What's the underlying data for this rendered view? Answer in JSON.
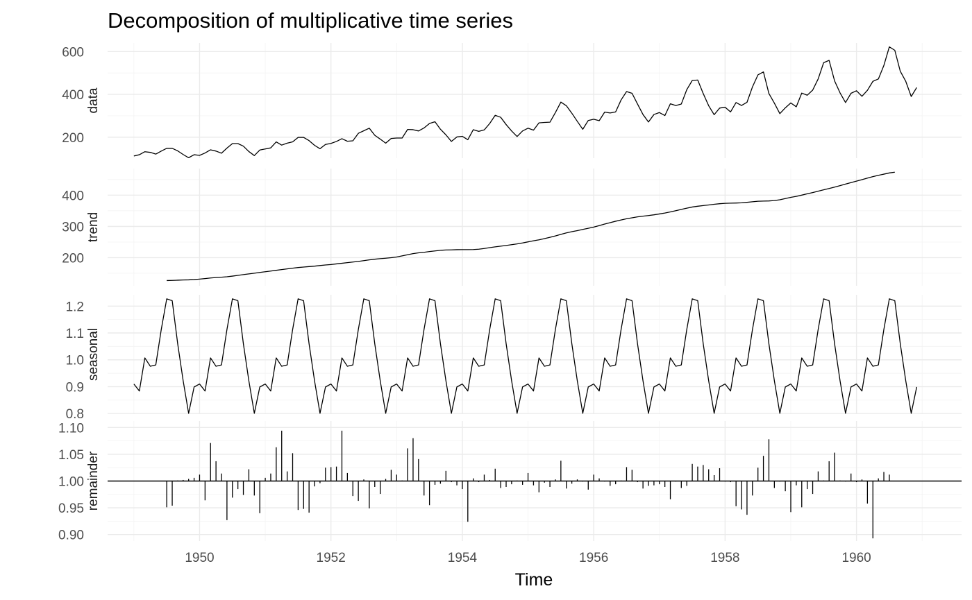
{
  "chart_data": {
    "type": "line",
    "title": "Decomposition of multiplicative time series",
    "xlabel": "Time",
    "frequency": 12,
    "start": [
      1949,
      1
    ],
    "x_range": [
      1948.6,
      1961.6
    ],
    "x_ticks": [
      1950,
      1952,
      1954,
      1956,
      1958,
      1960
    ],
    "grid": true,
    "panels": [
      {
        "name": "data",
        "ylim": [
          102,
          640
        ],
        "y_ticks": [
          200,
          400,
          600
        ],
        "y_tick_labels": [
          "200",
          "400",
          "600"
        ],
        "values": [
          112,
          118,
          132,
          129,
          121,
          135,
          148,
          148,
          136,
          119,
          104,
          118,
          115,
          126,
          141,
          135,
          125,
          149,
          170,
          170,
          158,
          133,
          114,
          140,
          145,
          150,
          178,
          163,
          172,
          178,
          199,
          199,
          184,
          162,
          146,
          166,
          171,
          180,
          193,
          181,
          183,
          218,
          230,
          242,
          209,
          191,
          172,
          194,
          196,
          196,
          236,
          235,
          229,
          243,
          264,
          272,
          237,
          211,
          180,
          201,
          204,
          188,
          235,
          227,
          234,
          264,
          302,
          293,
          259,
          229,
          203,
          229,
          242,
          233,
          267,
          269,
          270,
          315,
          364,
          347,
          312,
          274,
          237,
          278,
          284,
          277,
          317,
          313,
          318,
          374,
          413,
          405,
          355,
          306,
          271,
          306,
          315,
          301,
          356,
          348,
          355,
          422,
          465,
          467,
          404,
          347,
          305,
          336,
          340,
          318,
          362,
          348,
          363,
          435,
          491,
          505,
          404,
          359,
          310,
          337,
          360,
          342,
          406,
          396,
          420,
          472,
          548,
          559,
          463,
          407,
          362,
          405,
          417,
          391,
          419,
          461,
          472,
          535,
          622,
          606,
          508,
          461,
          390,
          432
        ]
      },
      {
        "name": "trend",
        "ylim": [
          110,
          485
        ],
        "y_ticks": [
          200,
          300,
          400
        ],
        "y_tick_labels": [
          "200",
          "300",
          "400"
        ],
        "values": [
          null,
          null,
          null,
          null,
          null,
          null,
          126.8,
          127.2,
          127.9,
          128.6,
          129.0,
          129.8,
          131.3,
          133.1,
          134.9,
          136.4,
          137.4,
          138.8,
          140.9,
          143.2,
          145.7,
          148.0,
          150.3,
          152.7,
          155.0,
          157.1,
          159.5,
          161.8,
          164.0,
          166.3,
          168.4,
          170.0,
          171.4,
          172.8,
          174.8,
          176.6,
          178.0,
          180.0,
          182.0,
          184.0,
          186.0,
          188.0,
          190.5,
          193.0,
          195.0,
          196.8,
          198.2,
          199.8,
          202.0,
          205.6,
          209.3,
          212.9,
          215.3,
          217.0,
          219.6,
          221.6,
          223.5,
          224.5,
          224.8,
          225.5,
          225.6,
          225.6,
          225.9,
          227.0,
          229.3,
          232.0,
          234.5,
          236.8,
          239.0,
          241.5,
          244.0,
          247.0,
          250.5,
          254.0,
          257.0,
          260.8,
          265.0,
          269.5,
          274.5,
          279.3,
          283.0,
          286.5,
          290.2,
          294.0,
          297.8,
          302.5,
          307.5,
          312.0,
          316.5,
          320.5,
          324.3,
          327.5,
          330.5,
          332.7,
          334.7,
          337.0,
          339.8,
          342.8,
          346.3,
          350.3,
          354.3,
          358.3,
          362.0,
          364.5,
          366.6,
          368.5,
          370.8,
          372.5,
          373.8,
          374.3,
          374.7,
          375.4,
          377.0,
          378.8,
          380.4,
          381.0,
          381.4,
          382.6,
          385.1,
          389.0,
          393.0,
          396.0,
          400.0,
          404.2,
          408.2,
          412.7,
          417.0,
          421.3,
          425.7,
          430.3,
          435.3,
          440.2,
          444.7,
          449.5,
          454.5,
          459.2,
          463.3,
          467.1,
          471.0,
          473.4,
          null,
          null,
          null,
          null,
          null,
          null
        ]
      },
      {
        "name": "seasonal",
        "ylim": [
          0.798,
          1.242
        ],
        "y_ticks": [
          0.8,
          0.9,
          1.0,
          1.1,
          1.2
        ],
        "y_tick_labels": [
          "0.8",
          "0.9",
          "1.0",
          "1.1",
          "1.2"
        ],
        "pattern": [
          0.91,
          0.884,
          1.007,
          0.976,
          0.981,
          1.113,
          1.227,
          1.22,
          1.06,
          0.922,
          0.801,
          0.899
        ]
      },
      {
        "name": "remainder",
        "ylim": [
          0.888,
          1.112
        ],
        "y_ticks": [
          0.9,
          0.95,
          1.0,
          1.05,
          1.1
        ],
        "y_tick_labels": [
          "0.90",
          "0.95",
          "1.00",
          "1.05",
          "1.10"
        ],
        "baseline": 1.0,
        "values": [
          null,
          null,
          null,
          null,
          null,
          null,
          0.951,
          0.954,
          1.001,
          1.002,
          1.004,
          1.006,
          1.012,
          0.964,
          1.071,
          1.037,
          1.014,
          0.927,
          0.969,
          0.985,
          0.974,
          1.022,
          0.973,
          0.94,
          1.006,
          1.014,
          1.063,
          1.094,
          1.018,
          1.052,
          0.946,
          0.948,
          0.941,
          0.99,
          0.996,
          1.025,
          1.026,
          1.027,
          1.094,
          1.015,
          0.972,
          0.963,
          1.003,
          0.949,
          0.989,
          0.976,
          1.004,
          1.021,
          1.012,
          1.001,
          1.061,
          1.08,
          1.041,
          0.973,
          0.955,
          0.993,
          0.995,
          1.019,
          0.998,
          0.992,
          0.985,
          0.924,
          1.005,
          0.998,
          1.012,
          1.002,
          1.023,
          0.987,
          0.989,
          0.994,
          1.001,
          0.993,
          1.015,
          0.992,
          0.979,
          0.997,
          0.989,
          1.003,
          1.038,
          0.986,
          0.995,
          1.003,
          0.999,
          0.984,
          1.012,
          1.005,
          0.999,
          0.991,
          0.994,
          1.001,
          1.026,
          1.021,
          0.998,
          0.986,
          0.991,
          0.992,
          0.994,
          0.989,
          0.966,
          0.999,
          0.987,
          0.991,
          1.032,
          1.027,
          1.03,
          1.022,
          1.011,
          1.024,
          0.999,
          0.998,
          0.953,
          0.947,
          0.937,
          0.973,
          1.025,
          1.047,
          1.078,
          0.987,
          0.999,
          0.981,
          0.942,
          0.992,
          0.951,
          0.985,
          0.976,
          1.018,
          1.001,
          1.037,
          1.053,
          1.001,
          0.999,
          1.014,
          0.998,
          1.003,
          0.958,
          0.893,
          1.005,
          1.017,
          1.012,
          null,
          null,
          null,
          null,
          null,
          null
        ]
      }
    ]
  }
}
